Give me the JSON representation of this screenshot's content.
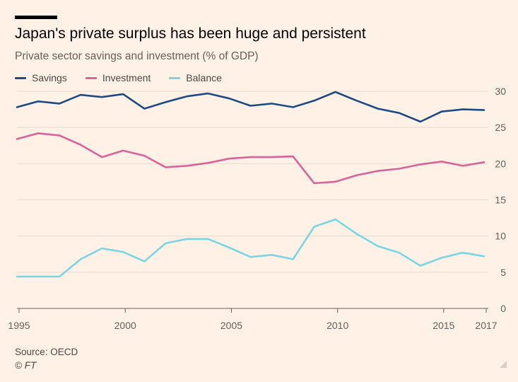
{
  "chart_data": {
    "type": "line",
    "title": "Japan's private surplus has been huge and persistent",
    "subtitle": "Private sector savings and investment (% of GDP)",
    "xlabel": "",
    "ylabel": "",
    "xlim": [
      1994.9,
      2017.1
    ],
    "ylim": [
      0,
      30
    ],
    "grid": true,
    "legend_position": "top-left",
    "y_ticks": [
      "0",
      "5",
      "10",
      "15",
      "20",
      "25",
      "30"
    ],
    "x_ticks": [
      {
        "value": 1995,
        "label": "1995"
      },
      {
        "value": 2000,
        "label": "2000"
      },
      {
        "value": 2005,
        "label": "2005"
      },
      {
        "value": 2010,
        "label": "2010"
      },
      {
        "value": 2015,
        "label": "2015"
      },
      {
        "value": 2017,
        "label": "2017"
      }
    ],
    "x": [
      1994.9,
      1995.9,
      1996.9,
      1997.9,
      1998.9,
      1999.9,
      2000.9,
      2001.9,
      2002.9,
      2003.9,
      2004.9,
      2005.9,
      2006.9,
      2007.9,
      2008.9,
      2009.9,
      2010.9,
      2011.9,
      2012.9,
      2013.9,
      2014.9,
      2015.9,
      2016.9
    ],
    "series": [
      {
        "name": "Savings",
        "color": "#1c4b87",
        "values": [
          27.8,
          28.6,
          28.3,
          29.5,
          29.2,
          29.6,
          27.6,
          28.5,
          29.3,
          29.7,
          29.0,
          28.0,
          28.3,
          27.8,
          28.7,
          29.9,
          28.7,
          27.6,
          27.0,
          25.8,
          27.2,
          27.5,
          27.4
        ]
      },
      {
        "name": "Investment",
        "color": "#d9649a",
        "values": [
          23.4,
          24.2,
          23.9,
          22.6,
          20.9,
          21.8,
          21.1,
          19.5,
          19.7,
          20.1,
          20.7,
          20.9,
          20.9,
          21.0,
          17.3,
          17.5,
          18.4,
          19.0,
          19.3,
          19.9,
          20.3,
          19.7,
          20.2
        ]
      },
      {
        "name": "Balance",
        "color": "#7ad6e4",
        "values": [
          4.4,
          4.4,
          4.4,
          6.8,
          8.3,
          7.8,
          6.5,
          9.0,
          9.6,
          9.6,
          8.4,
          7.1,
          7.4,
          6.8,
          11.3,
          12.3,
          10.3,
          8.6,
          7.7,
          5.9,
          7.0,
          7.7,
          7.2
        ]
      }
    ],
    "source": "Source: OECD",
    "credit": "© FT"
  }
}
